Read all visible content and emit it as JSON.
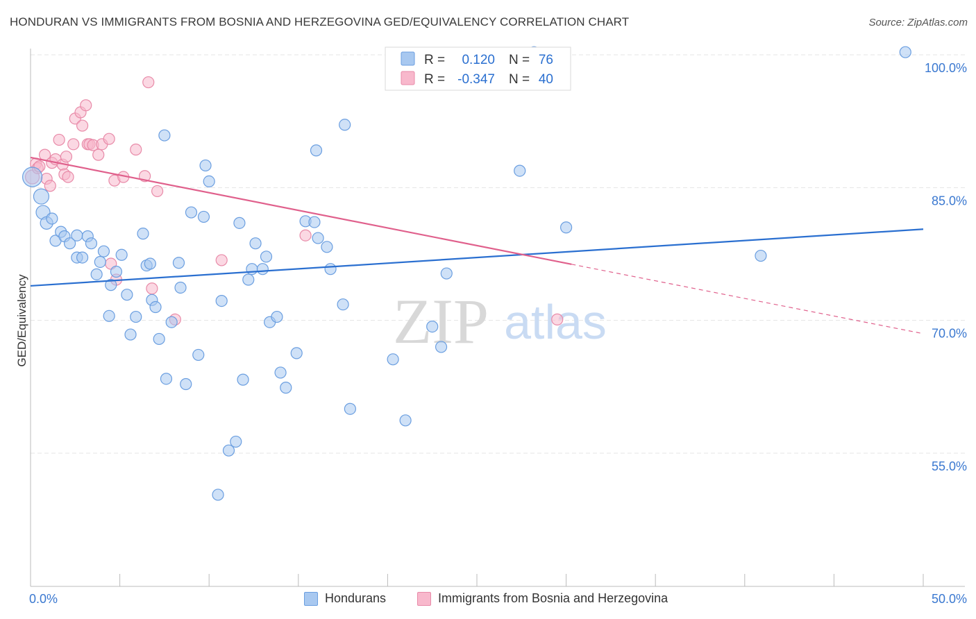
{
  "header": {
    "title": "HONDURAN VS IMMIGRANTS FROM BOSNIA AND HERZEGOVINA GED/EQUIVALENCY CORRELATION CHART",
    "source": "Source: ZipAtlas.com"
  },
  "watermark": {
    "zip": "ZIP",
    "atlas": "atlas"
  },
  "colors": {
    "blue_fill": "#a8c8f0",
    "blue_stroke": "#6a9ee0",
    "blue_line": "#2a6fd0",
    "pink_fill": "#f8b8cc",
    "pink_stroke": "#e88aa8",
    "pink_line": "#e0608c",
    "tick_label": "#3a78d0",
    "grid": "#e4e4e4"
  },
  "stats_legend": [
    {
      "r_label": "R =",
      "r_value": "0.120",
      "n_label": "N =",
      "n_value": "76",
      "series": "blue"
    },
    {
      "r_label": "R =",
      "r_value": "-0.347",
      "n_label": "N =",
      "n_value": "40",
      "series": "pink"
    }
  ],
  "chart_data": {
    "type": "scatter",
    "title": "HONDURAN VS IMMIGRANTS FROM BOSNIA AND HERZEGOVINA GED/EQUIVALENCY CORRELATION CHART",
    "xlabel": "",
    "ylabel": "GED/Equivalency",
    "xlim": [
      0,
      50
    ],
    "ylim": [
      40,
      101.5
    ],
    "x_tick_labels": [
      "0.0%",
      "50.0%"
    ],
    "y_ticks": [
      55,
      70,
      85,
      100
    ],
    "y_tick_labels": [
      "55.0%",
      "70.0%",
      "85.0%",
      "100.0%"
    ],
    "grid": true,
    "legend_position": "bottom",
    "series": [
      {
        "name": "Hondurans",
        "color": "#a8c8f0",
        "trend": {
          "x": [
            0,
            50
          ],
          "y": [
            73.9,
            80.3
          ],
          "dashed_from": null
        },
        "points": [
          [
            0.1,
            86.2,
            14
          ],
          [
            0.6,
            84.0,
            11
          ],
          [
            0.7,
            82.2,
            10
          ],
          [
            0.9,
            81.0,
            9
          ],
          [
            1.2,
            81.5,
            8
          ],
          [
            1.4,
            79.0,
            8
          ],
          [
            1.7,
            80.0,
            8
          ],
          [
            1.9,
            79.5,
            8
          ],
          [
            2.2,
            78.7,
            8
          ],
          [
            2.6,
            79.6,
            8
          ],
          [
            2.6,
            77.1,
            8
          ],
          [
            2.9,
            77.1,
            8
          ],
          [
            3.2,
            79.5,
            8
          ],
          [
            3.4,
            78.7,
            8
          ],
          [
            3.7,
            75.2,
            8
          ],
          [
            3.9,
            76.6,
            8
          ],
          [
            4.1,
            77.8,
            8
          ],
          [
            4.5,
            74.0,
            8
          ],
          [
            4.8,
            75.5,
            8
          ],
          [
            5.1,
            77.4,
            8
          ],
          [
            5.4,
            72.9,
            8
          ],
          [
            4.4,
            70.5,
            8
          ],
          [
            5.6,
            68.4,
            8
          ],
          [
            5.9,
            70.4,
            8
          ],
          [
            6.3,
            79.8,
            8
          ],
          [
            6.5,
            76.2,
            8
          ],
          [
            6.7,
            76.4,
            8
          ],
          [
            6.8,
            72.3,
            8
          ],
          [
            7.0,
            71.5,
            8
          ],
          [
            7.2,
            67.9,
            8
          ],
          [
            7.6,
            63.4,
            8
          ],
          [
            7.5,
            90.9,
            8
          ],
          [
            7.9,
            69.8,
            8
          ],
          [
            8.3,
            76.5,
            8
          ],
          [
            8.4,
            73.7,
            8
          ],
          [
            8.7,
            62.8,
            8
          ],
          [
            9.0,
            82.2,
            8
          ],
          [
            9.4,
            66.1,
            8
          ],
          [
            9.7,
            81.7,
            8
          ],
          [
            9.8,
            87.5,
            8
          ],
          [
            10.0,
            85.7,
            8
          ],
          [
            10.7,
            72.2,
            8
          ],
          [
            10.5,
            50.3,
            8
          ],
          [
            11.1,
            55.3,
            8
          ],
          [
            11.5,
            56.3,
            8
          ],
          [
            11.7,
            81.0,
            8
          ],
          [
            11.9,
            63.3,
            8
          ],
          [
            12.2,
            74.6,
            8
          ],
          [
            12.4,
            75.8,
            8
          ],
          [
            12.6,
            78.7,
            8
          ],
          [
            13.0,
            75.8,
            8
          ],
          [
            13.2,
            77.2,
            8
          ],
          [
            13.4,
            69.8,
            8
          ],
          [
            13.8,
            70.4,
            8
          ],
          [
            14.0,
            64.1,
            8
          ],
          [
            14.3,
            62.4,
            8
          ],
          [
            14.9,
            66.3,
            8
          ],
          [
            15.4,
            81.2,
            8
          ],
          [
            15.9,
            81.1,
            8
          ],
          [
            16.0,
            89.2,
            8
          ],
          [
            16.1,
            79.3,
            8
          ],
          [
            16.6,
            78.3,
            8
          ],
          [
            16.8,
            75.8,
            8
          ],
          [
            17.5,
            71.8,
            8
          ],
          [
            17.6,
            92.1,
            8
          ],
          [
            17.9,
            60.0,
            8
          ],
          [
            20.3,
            65.6,
            8
          ],
          [
            21.0,
            58.7,
            8
          ],
          [
            22.5,
            69.3,
            8
          ],
          [
            23.0,
            67.0,
            8
          ],
          [
            23.3,
            75.3,
            8
          ],
          [
            27.4,
            86.9,
            8
          ],
          [
            28.2,
            100.3,
            8
          ],
          [
            30.0,
            80.5,
            8
          ],
          [
            40.9,
            77.3,
            8
          ],
          [
            49.0,
            100.3,
            8
          ]
        ]
      },
      {
        "name": "Immigrants from Bosnia and Herzegovina",
        "color": "#f8b8cc",
        "trend": {
          "x": [
            0,
            50
          ],
          "y": [
            88.4,
            68.5
          ],
          "dashed_from": 30.3
        },
        "points": [
          [
            0.1,
            86.2,
            10
          ],
          [
            0.3,
            87.7,
            8
          ],
          [
            0.4,
            87.2,
            8
          ],
          [
            0.5,
            87.4,
            8
          ],
          [
            0.8,
            88.7,
            8
          ],
          [
            0.9,
            86.0,
            8
          ],
          [
            1.1,
            85.2,
            8
          ],
          [
            1.2,
            87.8,
            8
          ],
          [
            1.4,
            88.2,
            8
          ],
          [
            1.6,
            90.4,
            8
          ],
          [
            1.8,
            87.6,
            8
          ],
          [
            1.9,
            86.5,
            8
          ],
          [
            2.0,
            88.5,
            8
          ],
          [
            2.1,
            86.2,
            8
          ],
          [
            2.4,
            89.9,
            8
          ],
          [
            2.5,
            92.8,
            8
          ],
          [
            2.8,
            93.5,
            8
          ],
          [
            2.9,
            92.0,
            8
          ],
          [
            3.1,
            94.3,
            8
          ],
          [
            3.2,
            89.9,
            8
          ],
          [
            3.3,
            89.9,
            8
          ],
          [
            3.5,
            89.8,
            8
          ],
          [
            3.8,
            88.7,
            8
          ],
          [
            4.0,
            89.9,
            8
          ],
          [
            4.4,
            90.5,
            8
          ],
          [
            4.5,
            76.4,
            8
          ],
          [
            4.7,
            85.8,
            8
          ],
          [
            4.8,
            74.6,
            8
          ],
          [
            5.2,
            86.2,
            8
          ],
          [
            5.9,
            89.3,
            8
          ],
          [
            6.4,
            86.3,
            8
          ],
          [
            6.6,
            96.9,
            8
          ],
          [
            6.8,
            73.6,
            8
          ],
          [
            7.1,
            84.6,
            8
          ],
          [
            8.1,
            70.1,
            8
          ],
          [
            10.7,
            76.8,
            8
          ],
          [
            15.4,
            79.6,
            8
          ],
          [
            20.4,
            99.2,
            8
          ],
          [
            29.5,
            70.1,
            8
          ],
          [
            15.8,
            71.5,
            0
          ]
        ]
      }
    ]
  }
}
